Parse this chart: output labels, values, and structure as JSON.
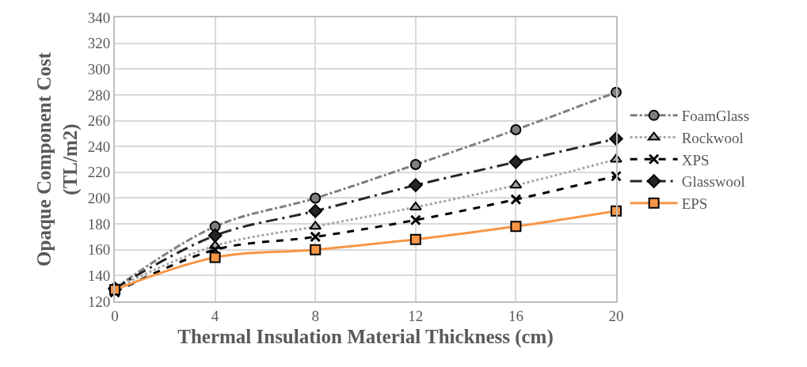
{
  "chart_data": {
    "type": "line",
    "xlabel": "Thermal Insulation Material Thickness (cm)",
    "ylabel": "Opaque Component Cost (TL/m2)",
    "x": [
      0,
      4,
      8,
      12,
      16,
      20
    ],
    "xlim": [
      0,
      20
    ],
    "xticks": [
      0,
      4,
      8,
      12,
      16,
      20
    ],
    "ylim": [
      120,
      340
    ],
    "yticks": [
      120,
      140,
      160,
      180,
      200,
      220,
      240,
      260,
      280,
      300,
      320,
      340
    ],
    "grid": true,
    "legend": "right",
    "series": [
      {
        "name": "FoamGlass",
        "color": "#7f7f7f",
        "marker": "circle",
        "line_style": "dashdot",
        "values": [
          130,
          178,
          200,
          226,
          253,
          282
        ]
      },
      {
        "name": "Rockwool",
        "color": "#a6a6a6",
        "marker": "triangle",
        "line_style": "dotted",
        "values": [
          130,
          163,
          178,
          193,
          210,
          230
        ]
      },
      {
        "name": "XPS",
        "color": "#000000",
        "marker": "cross",
        "line_style": "dashed",
        "values": [
          127,
          160,
          170,
          183,
          199,
          217
        ]
      },
      {
        "name": "Glasswool",
        "color": "#262626",
        "marker": "diamond",
        "line_style": "longdashdot",
        "values": [
          130,
          171,
          190,
          210,
          228,
          246
        ]
      },
      {
        "name": "EPS",
        "color": "#f79646",
        "marker": "square",
        "line_style": "solid",
        "values": [
          129,
          154,
          160,
          168,
          178,
          190
        ]
      }
    ]
  }
}
